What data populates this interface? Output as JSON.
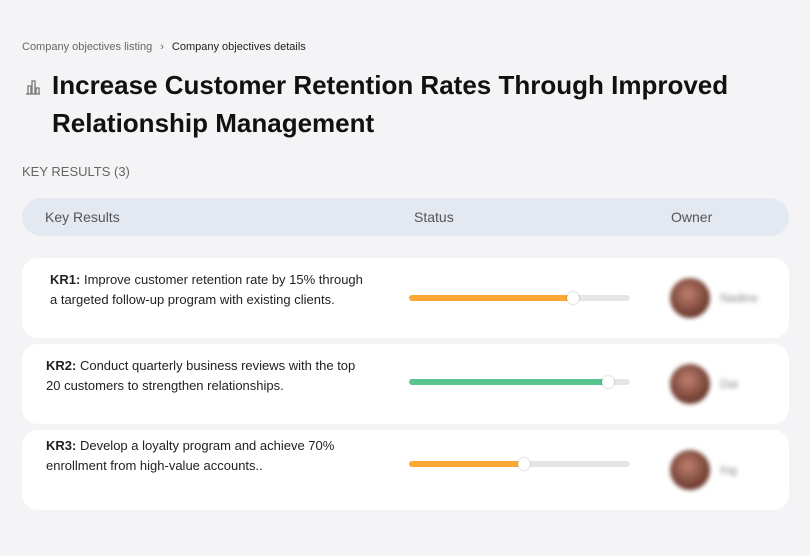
{
  "breadcrumb": {
    "items": [
      "Company objectives listing",
      "Company objectives details"
    ],
    "separator": "›"
  },
  "page": {
    "title": "Increase Customer Retention Rates Through Improved Relationship Management",
    "icon": "building-chart-icon"
  },
  "key_results_label": "KEY RESULTS (3)",
  "table": {
    "headers": {
      "key_results": "Key Results",
      "status": "Status",
      "owner": "Owner"
    }
  },
  "colors": {
    "orange": "#FFA733",
    "green": "#58C590"
  },
  "rows": [
    {
      "id": "KR1:",
      "text": " Improve customer retention rate by 15% through a targeted follow-up program with existing clients.",
      "progress": 74,
      "color": "#FFA733",
      "owner": "Nadine"
    },
    {
      "id": "KR2:",
      "text": " Conduct quarterly business reviews with the top 20 customers to strengthen relationships.",
      "progress": 90,
      "color": "#58C590",
      "owner": "Dai"
    },
    {
      "id": "KR3:",
      "text": " Develop a loyalty program and achieve 70% enrollment from high-value accounts..",
      "progress": 52,
      "color": "#FFA733",
      "owner": "Ing"
    }
  ]
}
